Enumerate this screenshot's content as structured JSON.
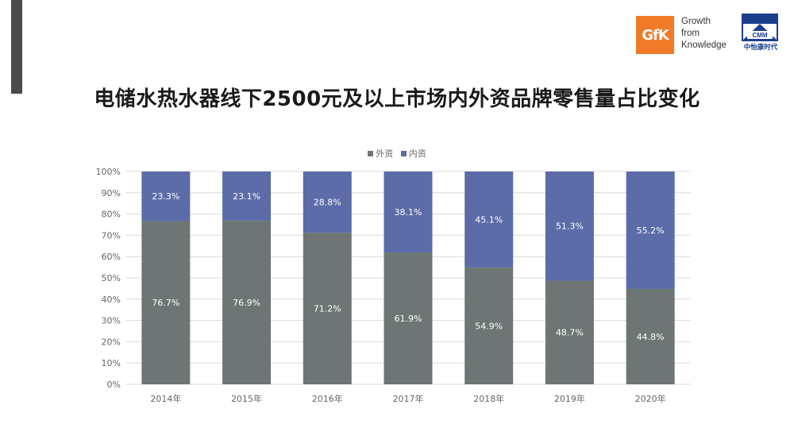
{
  "header": {
    "gfk_logo_text": "GfK",
    "gfk_tagline": [
      "Growth",
      "from",
      "Knowledge"
    ],
    "cmm_logo_text": "CMM",
    "cmm_name": "中怡康时代",
    "title": "电储水热水器线下2500元及以上市场内外资品牌零售量占比变化"
  },
  "colors": {
    "foreign": "#6d7675",
    "domestic": "#5b6ca8",
    "accent": "#f07a28"
  },
  "chart_data": {
    "type": "bar",
    "stacked": true,
    "categories": [
      "2014年",
      "2015年",
      "2016年",
      "2017年",
      "2018年",
      "2019年",
      "2020年"
    ],
    "series": [
      {
        "name": "外资",
        "values": [
          76.7,
          76.9,
          71.2,
          61.9,
          54.9,
          48.7,
          44.8
        ],
        "labels": [
          "76.7%",
          "76.9%",
          "71.2%",
          "61.9%",
          "54.9%",
          "48.7%",
          "44.8%"
        ]
      },
      {
        "name": "内资",
        "values": [
          23.3,
          23.1,
          28.8,
          38.1,
          45.1,
          51.3,
          55.2
        ],
        "labels": [
          "23.3%",
          "23.1%",
          "28.8%",
          "38.1%",
          "45.1%",
          "51.3%",
          "55.2%"
        ]
      }
    ],
    "y_ticks": [
      "0%",
      "10%",
      "20%",
      "30%",
      "40%",
      "50%",
      "60%",
      "70%",
      "80%",
      "90%",
      "100%"
    ],
    "ylim": [
      0,
      100
    ],
    "legend_position": "top",
    "grid": true
  }
}
